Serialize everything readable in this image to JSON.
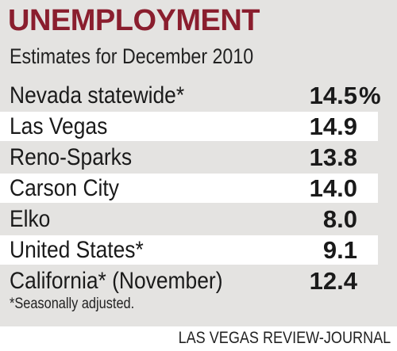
{
  "chart_data": {
    "type": "table",
    "title": "UNEMPLOYMENT",
    "subtitle": "Estimates for December 2010",
    "rows": [
      {
        "label": "Nevada statewide*",
        "value": "14.5",
        "unit": "%",
        "banded": false
      },
      {
        "label": "Las Vegas",
        "value": "14.9",
        "unit": "",
        "banded": true
      },
      {
        "label": "Reno-Sparks",
        "value": "13.8",
        "unit": "",
        "banded": false
      },
      {
        "label": "Carson City",
        "value": "14.0",
        "unit": "",
        "banded": true
      },
      {
        "label": "Elko",
        "value": "8.0",
        "unit": "",
        "banded": false
      },
      {
        "label": "United States*",
        "value": "9.1",
        "unit": "",
        "banded": true
      },
      {
        "label": "California* (November)",
        "value": "12.4",
        "unit": "",
        "banded": false
      }
    ],
    "footnote": "*Seasonally adjusted.",
    "source": "LAS VEGAS REVIEW-JOURNAL",
    "colors": {
      "title": "#8a1e2e",
      "panel": "#e4e3e1",
      "band": "#ffffff"
    }
  }
}
